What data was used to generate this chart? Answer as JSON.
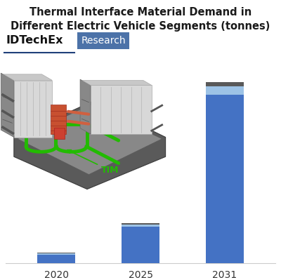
{
  "title_line1": "Thermal Interface Material Demand in",
  "title_line2": "Different Electric Vehicle Segments (tonnes)",
  "categories": [
    "2020",
    "2025",
    "2031"
  ],
  "seg_main": [
    100,
    420,
    1950
  ],
  "seg_light": [
    12,
    28,
    90
  ],
  "seg_dark": [
    8,
    18,
    55
  ],
  "col_main": "#4472C4",
  "col_light": "#9DC3E6",
  "col_dark": "#595959",
  "bar_width": 0.45,
  "title_fs": 10.5,
  "tick_fs": 10,
  "bg": "#FFFFFF",
  "idtechex": "IDTechEx",
  "research": "Research",
  "tim": "TIM",
  "tim_color": "#22BB00",
  "research_bg": "#4C72A8",
  "underline_color": "#1F3F7A"
}
